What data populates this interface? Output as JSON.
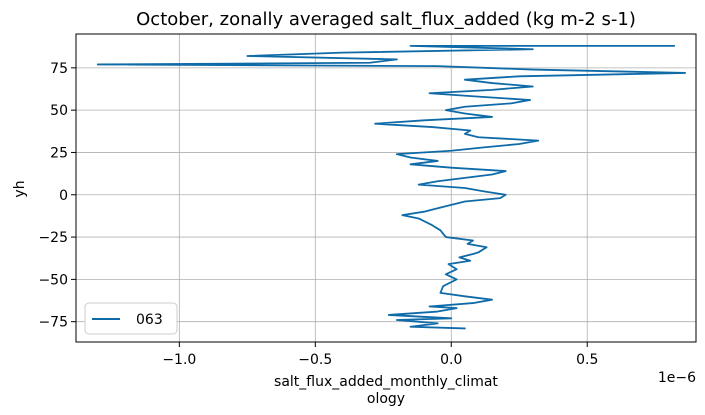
{
  "chart_data": {
    "type": "line",
    "title": "October, zonally averaged salt_flux_added (kg m-2 s-1)",
    "xlabel": "salt_flux_added_monthly_climat\nology",
    "ylabel": "yh",
    "x_offset_label": "1e−6",
    "xlim": [
      -1.38,
      0.9
    ],
    "ylim": [
      -87,
      95
    ],
    "x_ticks": [
      -1.0,
      -0.5,
      0.0,
      0.5
    ],
    "x_tick_labels": [
      "−1.0",
      "−0.5",
      "0.0",
      "0.5"
    ],
    "y_ticks": [
      -75,
      -50,
      -25,
      0,
      25,
      50,
      75
    ],
    "y_tick_labels": [
      "−75",
      "−50",
      "−25",
      "0",
      "25",
      "50",
      "75"
    ],
    "grid": true,
    "legend_placement": "lower-left",
    "line_color": "#0f6ba8",
    "series": [
      {
        "name": "063",
        "points": [
          [
            0.05,
            -79
          ],
          [
            -0.15,
            -78
          ],
          [
            -0.05,
            -76
          ],
          [
            -0.2,
            -74
          ],
          [
            0.0,
            -73
          ],
          [
            -0.23,
            -71
          ],
          [
            -0.05,
            -69
          ],
          [
            0.02,
            -67
          ],
          [
            -0.08,
            -66
          ],
          [
            0.08,
            -64
          ],
          [
            0.15,
            -62
          ],
          [
            0.05,
            -60
          ],
          [
            -0.04,
            -58
          ],
          [
            -0.03,
            -54
          ],
          [
            0.02,
            -50
          ],
          [
            -0.02,
            -47
          ],
          [
            0.02,
            -44
          ],
          [
            -0.01,
            -41
          ],
          [
            0.07,
            -39
          ],
          [
            0.03,
            -37
          ],
          [
            0.08,
            -35
          ],
          [
            0.1,
            -34
          ],
          [
            0.13,
            -31
          ],
          [
            0.06,
            -29
          ],
          [
            0.08,
            -27
          ],
          [
            -0.02,
            -25
          ],
          [
            -0.04,
            -21
          ],
          [
            -0.07,
            -18
          ],
          [
            -0.12,
            -14
          ],
          [
            -0.18,
            -12
          ],
          [
            -0.1,
            -10
          ],
          [
            -0.05,
            -8
          ],
          [
            0.0,
            -6
          ],
          [
            0.05,
            -4
          ],
          [
            0.18,
            -2
          ],
          [
            0.2,
            0
          ],
          [
            0.12,
            2
          ],
          [
            0.05,
            4
          ],
          [
            -0.12,
            6
          ],
          [
            -0.05,
            8
          ],
          [
            0.05,
            10
          ],
          [
            0.15,
            12
          ],
          [
            0.2,
            14
          ],
          [
            0.0,
            16
          ],
          [
            -0.15,
            18
          ],
          [
            -0.05,
            20
          ],
          [
            -0.15,
            22
          ],
          [
            -0.2,
            24
          ],
          [
            0.0,
            26
          ],
          [
            0.12,
            28
          ],
          [
            0.25,
            30
          ],
          [
            0.32,
            32
          ],
          [
            0.1,
            34
          ],
          [
            0.05,
            36
          ],
          [
            0.07,
            38
          ],
          [
            -0.07,
            40
          ],
          [
            -0.28,
            42
          ],
          [
            -0.1,
            44
          ],
          [
            0.15,
            46
          ],
          [
            0.05,
            48
          ],
          [
            -0.02,
            50
          ],
          [
            0.05,
            52
          ],
          [
            0.22,
            54
          ],
          [
            0.29,
            56
          ],
          [
            0.1,
            58
          ],
          [
            -0.08,
            60
          ],
          [
            0.15,
            62
          ],
          [
            0.3,
            64
          ],
          [
            0.15,
            66
          ],
          [
            0.05,
            68
          ],
          [
            0.25,
            70
          ],
          [
            0.86,
            72
          ],
          [
            0.3,
            74
          ],
          [
            -0.05,
            76
          ],
          [
            -1.3,
            77
          ],
          [
            -0.3,
            78
          ],
          [
            -0.2,
            80
          ],
          [
            -0.75,
            82
          ],
          [
            -0.4,
            84
          ],
          [
            0.3,
            86
          ],
          [
            -0.15,
            88
          ],
          [
            0.82,
            88
          ]
        ]
      }
    ]
  }
}
